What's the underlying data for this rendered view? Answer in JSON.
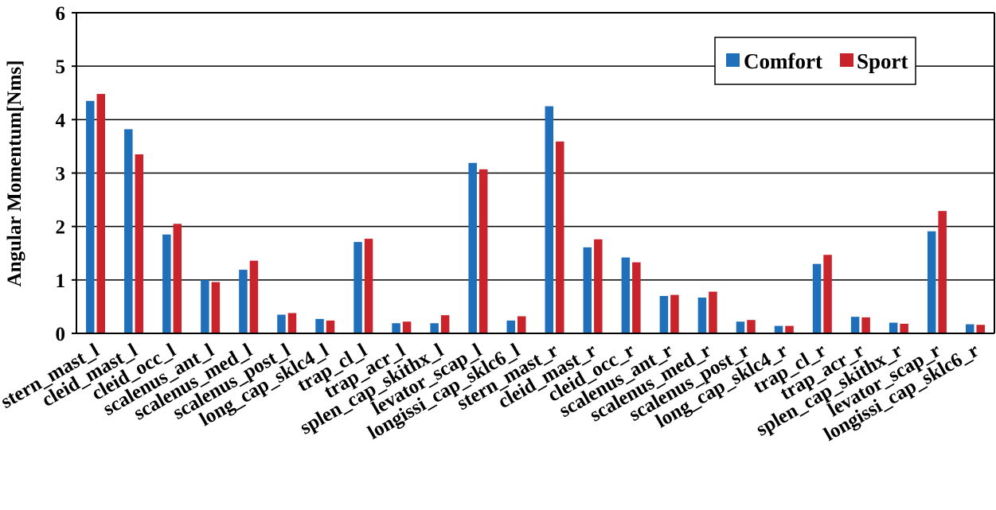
{
  "chart_data": {
    "type": "bar",
    "ylabel": "Angular Momentum[Nms]",
    "xlabel": "",
    "ylim": [
      0,
      6
    ],
    "yticks": [
      "0",
      "1",
      "2",
      "3",
      "4",
      "5",
      "6"
    ],
    "grid": "horizontal",
    "legend_position": "top-right",
    "categories": [
      "stern_mast_l",
      "cleid_mast_l",
      "cleid_occ_l",
      "scalenus_ant_l",
      "scalenus_med_l",
      "scalenus_post_l",
      "long_cap_sklc4_l",
      "trap_cl_l",
      "trap_acr_l",
      "splen_cap_skithx_l",
      "levator_scap_l",
      "longissi_cap_sklc6_l",
      "stern_mast_r",
      "cleid_mast_r",
      "cleid_occ_r",
      "scalenus_ant_r",
      "scalenus_med_r",
      "scalenus_post_r",
      "long_cap_sklc4_r",
      "trap_cl_r",
      "trap_acr_r",
      "splen_cap_skithx_r",
      "levator_scap_r",
      "longissi_cap_sklc6_r"
    ],
    "series": [
      {
        "name": "Comfort",
        "color": "#1f6fba",
        "values": [
          4.35,
          3.82,
          1.85,
          1.0,
          1.19,
          0.35,
          0.27,
          1.71,
          0.19,
          0.19,
          3.19,
          0.24,
          4.25,
          1.61,
          1.42,
          0.7,
          0.67,
          0.22,
          0.14,
          1.3,
          0.31,
          0.2,
          1.91,
          0.17
        ]
      },
      {
        "name": "Sport",
        "color": "#c9232c",
        "values": [
          4.48,
          3.35,
          2.05,
          0.96,
          1.36,
          0.38,
          0.24,
          1.77,
          0.22,
          0.34,
          3.07,
          0.32,
          3.59,
          1.76,
          1.33,
          0.72,
          0.78,
          0.25,
          0.14,
          1.47,
          0.3,
          0.18,
          2.29,
          0.16
        ]
      }
    ]
  }
}
